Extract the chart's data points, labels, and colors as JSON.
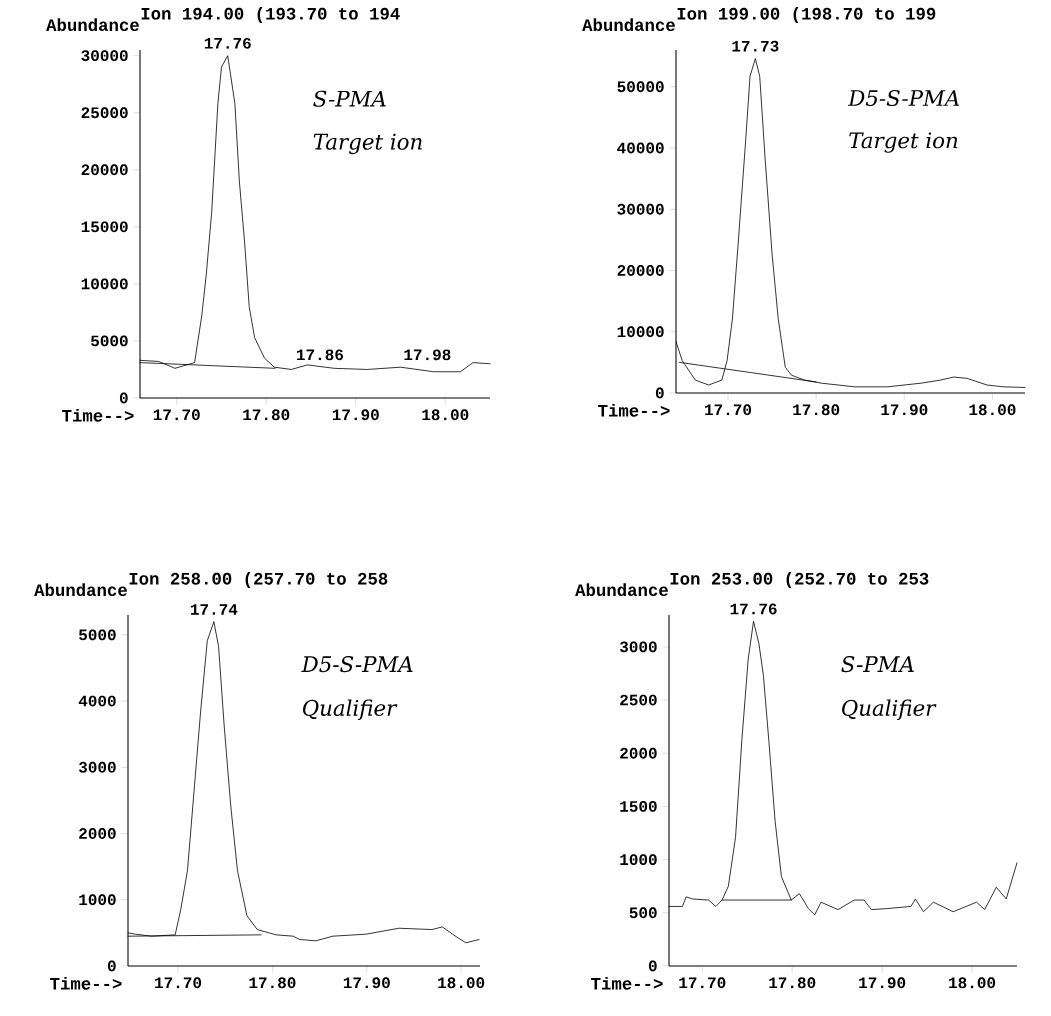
{
  "chart_data": [
    {
      "type": "line",
      "title": "Ion 194.00 (193.70 to 194",
      "ylabel": "Abundance",
      "xlabel": "Time-->",
      "xlim": [
        17.659,
        18.05
      ],
      "ylim": [
        0,
        30500
      ],
      "xticks": [
        {
          "value": 17.7,
          "label": "17.70"
        },
        {
          "value": 17.8,
          "label": "17.80"
        },
        {
          "value": 17.9,
          "label": "17.90"
        },
        {
          "value": 18.0,
          "label": "18.00"
        }
      ],
      "yticks": [
        0,
        5000,
        10000,
        15000,
        20000,
        25000,
        30000
      ],
      "series": [
        {
          "color": "#000000",
          "x": [
            17.659,
            17.68,
            17.698,
            17.72,
            17.728,
            17.733,
            17.739,
            17.746,
            17.75,
            17.757,
            17.765,
            17.77,
            17.776,
            17.781,
            17.787,
            17.798,
            17.809,
            17.828,
            17.846,
            17.876,
            17.913,
            17.95,
            17.987,
            18.017,
            18.031,
            18.05
          ],
          "values": [
            3300,
            3200,
            2600,
            3100,
            7200,
            10800,
            16200,
            25800,
            29000,
            30000,
            25800,
            19000,
            13500,
            8000,
            5300,
            3500,
            2700,
            2500,
            2900,
            2600,
            2500,
            2700,
            2300,
            2300,
            3100,
            3000
          ]
        },
        {
          "color": "#000000",
          "x": [
            17.659,
            17.81
          ],
          "values": [
            3100,
            2600
          ]
        }
      ],
      "annotations": [
        {
          "text": "17.76",
          "x": 17.757,
          "y": 30000
        },
        {
          "text": "17.86",
          "x": 17.86,
          "y": 2700
        },
        {
          "text": "17.98",
          "x": 17.98,
          "y": 2700
        },
        "S-PMA",
        "Target ion"
      ]
    },
    {
      "type": "line",
      "title": "Ion 199.00 (198.70 to 199",
      "ylabel": "Abundance",
      "xlabel": "Time-->",
      "xlim": [
        17.641,
        18.037
      ],
      "ylim": [
        0,
        56000
      ],
      "xticks": [
        {
          "value": 17.7,
          "label": "17.70"
        },
        {
          "value": 17.8,
          "label": "17.80"
        },
        {
          "value": 17.9,
          "label": "17.90"
        },
        {
          "value": 18.0,
          "label": "18.00"
        }
      ],
      "yticks": [
        0,
        10000,
        20000,
        30000,
        40000,
        50000
      ],
      "series": [
        {
          "color": "#000000",
          "x": [
            17.641,
            17.648,
            17.663,
            17.678,
            17.693,
            17.699,
            17.705,
            17.712,
            17.72,
            17.725,
            17.731,
            17.736,
            17.742,
            17.75,
            17.757,
            17.765,
            17.772,
            17.787,
            17.806,
            17.844,
            17.881,
            17.919,
            17.941,
            17.956,
            17.971,
            17.994,
            18.013,
            18.037
          ],
          "values": [
            8400,
            5300,
            2100,
            1300,
            2100,
            5300,
            12100,
            25300,
            41100,
            51700,
            54600,
            51700,
            38500,
            22700,
            12100,
            4200,
            2900,
            2100,
            1600,
            1000,
            1000,
            1600,
            2100,
            2600,
            2400,
            1300,
            1000,
            900
          ]
        },
        {
          "color": "#000000",
          "x": [
            17.645,
            17.8
          ],
          "values": [
            5000,
            1800
          ]
        }
      ],
      "annotations": [
        {
          "text": "17.73",
          "x": 17.731,
          "y": 54600
        },
        "D5-S-PMA",
        "Target ion"
      ]
    },
    {
      "type": "line",
      "title": "Ion 258.00 (257.70 to 258",
      "ylabel": "Abundance",
      "xlabel": "Time-->",
      "xlim": [
        17.647,
        18.02
      ],
      "ylim": [
        0,
        5300
      ],
      "xticks": [
        {
          "value": 17.7,
          "label": "17.70"
        },
        {
          "value": 17.8,
          "label": "17.80"
        },
        {
          "value": 17.9,
          "label": "17.90"
        },
        {
          "value": 18.0,
          "label": "18.00"
        }
      ],
      "yticks": [
        0,
        1000,
        2000,
        3000,
        4000,
        5000
      ],
      "series": [
        {
          "color": "#000000",
          "x": [
            17.647,
            17.655,
            17.672,
            17.697,
            17.703,
            17.71,
            17.717,
            17.724,
            17.731,
            17.738,
            17.743,
            17.749,
            17.756,
            17.763,
            17.773,
            17.784,
            17.804,
            17.822,
            17.829,
            17.846,
            17.864,
            17.899,
            17.934,
            17.969,
            17.98,
            17.994,
            18.005,
            18.019
          ],
          "values": [
            500,
            480,
            450,
            470,
            860,
            1440,
            2640,
            3850,
            4910,
            5200,
            4820,
            3610,
            2400,
            1440,
            760,
            550,
            470,
            450,
            400,
            380,
            450,
            480,
            570,
            550,
            590,
            450,
            350,
            400
          ]
        },
        {
          "color": "#000000",
          "x": [
            17.647,
            17.788
          ],
          "values": [
            450,
            470
          ]
        }
      ],
      "annotations": [
        {
          "text": "17.74",
          "x": 17.738,
          "y": 5200
        },
        "D5-S-PMA",
        "Qualifier"
      ]
    },
    {
      "type": "line",
      "title": "Ion 253.00 (252.70 to 253",
      "ylabel": "Abundance",
      "xlabel": "Time-->",
      "xlim": [
        17.663,
        18.05
      ],
      "ylim": [
        0,
        3300
      ],
      "xticks": [
        {
          "value": 17.7,
          "label": "17.70"
        },
        {
          "value": 17.8,
          "label": "17.80"
        },
        {
          "value": 17.9,
          "label": "17.90"
        },
        {
          "value": 18.0,
          "label": "18.00"
        }
      ],
      "yticks": [
        0,
        500,
        1000,
        1500,
        2000,
        2500,
        3000
      ],
      "series": [
        {
          "color": "#000000",
          "x": [
            17.663,
            17.678,
            17.682,
            17.689,
            17.707,
            17.715,
            17.722,
            17.729,
            17.737,
            17.744,
            17.751,
            17.757,
            17.763,
            17.768,
            17.774,
            17.781,
            17.788,
            17.799,
            17.808,
            17.818,
            17.825,
            17.832,
            17.851,
            17.869,
            17.88,
            17.888,
            17.906,
            17.932,
            17.937,
            17.946,
            17.957,
            17.979,
            18.005,
            18.014,
            18.027,
            18.038,
            18.05
          ],
          "values": [
            560,
            560,
            650,
            630,
            620,
            560,
            620,
            750,
            1210,
            2120,
            2880,
            3240,
            3030,
            2730,
            2120,
            1360,
            840,
            620,
            680,
            540,
            480,
            600,
            530,
            620,
            620,
            530,
            540,
            560,
            630,
            510,
            600,
            510,
            600,
            530,
            740,
            630,
            970
          ]
        },
        {
          "color": "#000000",
          "x": [
            17.722,
            17.799
          ],
          "values": [
            620,
            620
          ]
        }
      ],
      "annotations": [
        {
          "text": "17.76",
          "x": 17.757,
          "y": 3240
        },
        "S-PMA",
        "Qualifier"
      ]
    }
  ]
}
